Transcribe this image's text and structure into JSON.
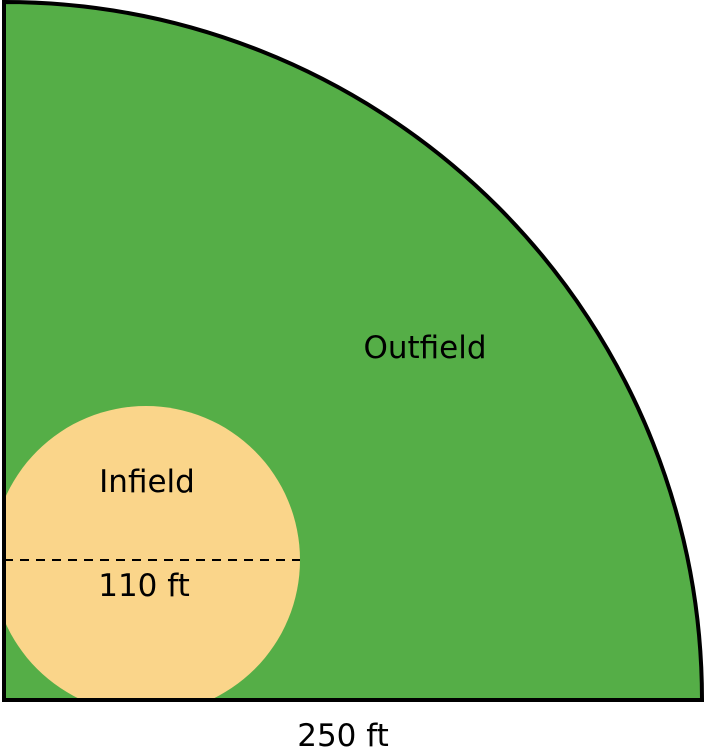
{
  "labels": {
    "outfield": "Outfield",
    "infield": "Infield",
    "infield_diameter": "110 ft",
    "field_radius": "250 ft"
  },
  "colors": {
    "outfield": "#55ae47",
    "infield": "#fad58a",
    "outline": "#000000"
  }
}
